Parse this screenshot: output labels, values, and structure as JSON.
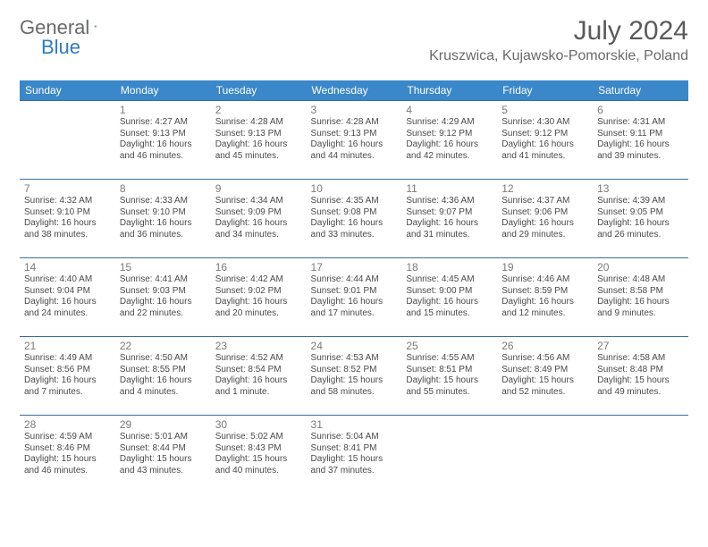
{
  "logo": {
    "general": "General",
    "blue": "Blue"
  },
  "title": "July 2024",
  "location": "Kruszwica, Kujawsko-Pomorskie, Poland",
  "headerBg": "#3a87c9",
  "weekdays": [
    "Sunday",
    "Monday",
    "Tuesday",
    "Wednesday",
    "Thursday",
    "Friday",
    "Saturday"
  ],
  "firstDayOffset": 1,
  "daysInMonth": 31,
  "days": {
    "1": {
      "sunrise": "4:27 AM",
      "sunset": "9:13 PM",
      "daylight": "16 hours and 46 minutes."
    },
    "2": {
      "sunrise": "4:28 AM",
      "sunset": "9:13 PM",
      "daylight": "16 hours and 45 minutes."
    },
    "3": {
      "sunrise": "4:28 AM",
      "sunset": "9:13 PM",
      "daylight": "16 hours and 44 minutes."
    },
    "4": {
      "sunrise": "4:29 AM",
      "sunset": "9:12 PM",
      "daylight": "16 hours and 42 minutes."
    },
    "5": {
      "sunrise": "4:30 AM",
      "sunset": "9:12 PM",
      "daylight": "16 hours and 41 minutes."
    },
    "6": {
      "sunrise": "4:31 AM",
      "sunset": "9:11 PM",
      "daylight": "16 hours and 39 minutes."
    },
    "7": {
      "sunrise": "4:32 AM",
      "sunset": "9:10 PM",
      "daylight": "16 hours and 38 minutes."
    },
    "8": {
      "sunrise": "4:33 AM",
      "sunset": "9:10 PM",
      "daylight": "16 hours and 36 minutes."
    },
    "9": {
      "sunrise": "4:34 AM",
      "sunset": "9:09 PM",
      "daylight": "16 hours and 34 minutes."
    },
    "10": {
      "sunrise": "4:35 AM",
      "sunset": "9:08 PM",
      "daylight": "16 hours and 33 minutes."
    },
    "11": {
      "sunrise": "4:36 AM",
      "sunset": "9:07 PM",
      "daylight": "16 hours and 31 minutes."
    },
    "12": {
      "sunrise": "4:37 AM",
      "sunset": "9:06 PM",
      "daylight": "16 hours and 29 minutes."
    },
    "13": {
      "sunrise": "4:39 AM",
      "sunset": "9:05 PM",
      "daylight": "16 hours and 26 minutes."
    },
    "14": {
      "sunrise": "4:40 AM",
      "sunset": "9:04 PM",
      "daylight": "16 hours and 24 minutes."
    },
    "15": {
      "sunrise": "4:41 AM",
      "sunset": "9:03 PM",
      "daylight": "16 hours and 22 minutes."
    },
    "16": {
      "sunrise": "4:42 AM",
      "sunset": "9:02 PM",
      "daylight": "16 hours and 20 minutes."
    },
    "17": {
      "sunrise": "4:44 AM",
      "sunset": "9:01 PM",
      "daylight": "16 hours and 17 minutes."
    },
    "18": {
      "sunrise": "4:45 AM",
      "sunset": "9:00 PM",
      "daylight": "16 hours and 15 minutes."
    },
    "19": {
      "sunrise": "4:46 AM",
      "sunset": "8:59 PM",
      "daylight": "16 hours and 12 minutes."
    },
    "20": {
      "sunrise": "4:48 AM",
      "sunset": "8:58 PM",
      "daylight": "16 hours and 9 minutes."
    },
    "21": {
      "sunrise": "4:49 AM",
      "sunset": "8:56 PM",
      "daylight": "16 hours and 7 minutes."
    },
    "22": {
      "sunrise": "4:50 AM",
      "sunset": "8:55 PM",
      "daylight": "16 hours and 4 minutes."
    },
    "23": {
      "sunrise": "4:52 AM",
      "sunset": "8:54 PM",
      "daylight": "16 hours and 1 minute."
    },
    "24": {
      "sunrise": "4:53 AM",
      "sunset": "8:52 PM",
      "daylight": "15 hours and 58 minutes."
    },
    "25": {
      "sunrise": "4:55 AM",
      "sunset": "8:51 PM",
      "daylight": "15 hours and 55 minutes."
    },
    "26": {
      "sunrise": "4:56 AM",
      "sunset": "8:49 PM",
      "daylight": "15 hours and 52 minutes."
    },
    "27": {
      "sunrise": "4:58 AM",
      "sunset": "8:48 PM",
      "daylight": "15 hours and 49 minutes."
    },
    "28": {
      "sunrise": "4:59 AM",
      "sunset": "8:46 PM",
      "daylight": "15 hours and 46 minutes."
    },
    "29": {
      "sunrise": "5:01 AM",
      "sunset": "8:44 PM",
      "daylight": "15 hours and 43 minutes."
    },
    "30": {
      "sunrise": "5:02 AM",
      "sunset": "8:43 PM",
      "daylight": "15 hours and 40 minutes."
    },
    "31": {
      "sunrise": "5:04 AM",
      "sunset": "8:41 PM",
      "daylight": "15 hours and 37 minutes."
    }
  },
  "labels": {
    "sunrise": "Sunrise:",
    "sunset": "Sunset:",
    "daylight": "Daylight:"
  }
}
